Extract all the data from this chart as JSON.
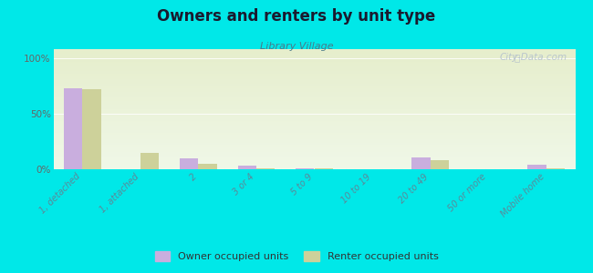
{
  "title": "Owners and renters by unit type",
  "subtitle": "Library Village",
  "categories": [
    "1, detached",
    "1, attached",
    "2",
    "3 or 4",
    "5 to 9",
    "10 to 19",
    "20 to 49",
    "50 or more",
    "Mobile home"
  ],
  "owner_values": [
    73,
    0,
    10,
    3,
    1,
    0,
    11,
    0,
    4
  ],
  "renter_values": [
    72,
    15,
    5,
    1,
    1,
    0,
    8,
    0,
    1
  ],
  "owner_color": "#c9aede",
  "renter_color": "#cdd19a",
  "background_color": "#00e8e8",
  "plot_bg_top": "#e6eecc",
  "plot_bg_bottom": "#f0f8e8",
  "ylabel_ticks": [
    "0%",
    "50%",
    "100%"
  ],
  "ytick_vals": [
    0,
    50,
    100
  ],
  "ylim": [
    0,
    108
  ],
  "bar_width": 0.32,
  "legend_owner": "Owner occupied units",
  "legend_renter": "Renter occupied units",
  "watermark": "City-Data.com",
  "title_color": "#1a1a2e",
  "subtitle_color": "#4a7a8a",
  "tick_color": "#5a8a9a",
  "ytick_color": "#666666"
}
